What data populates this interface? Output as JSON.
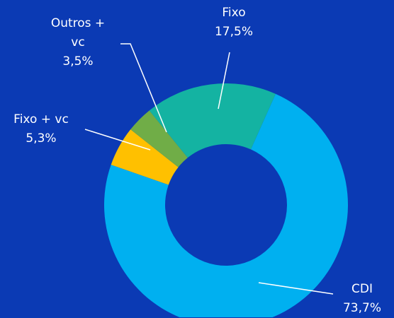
{
  "chart_data": {
    "type": "donut",
    "categories": [
      "CDI",
      "Fixo + vc",
      "Outros + vc",
      "Fixo"
    ],
    "values": [
      73.7,
      5.3,
      3.5,
      17.5
    ],
    "value_labels": [
      "73,7%",
      "5,3%",
      "3,5%",
      "17,5%"
    ],
    "colors": [
      "#00b0f0",
      "#ffc000",
      "#70ad47",
      "#14b3a2"
    ]
  }
}
